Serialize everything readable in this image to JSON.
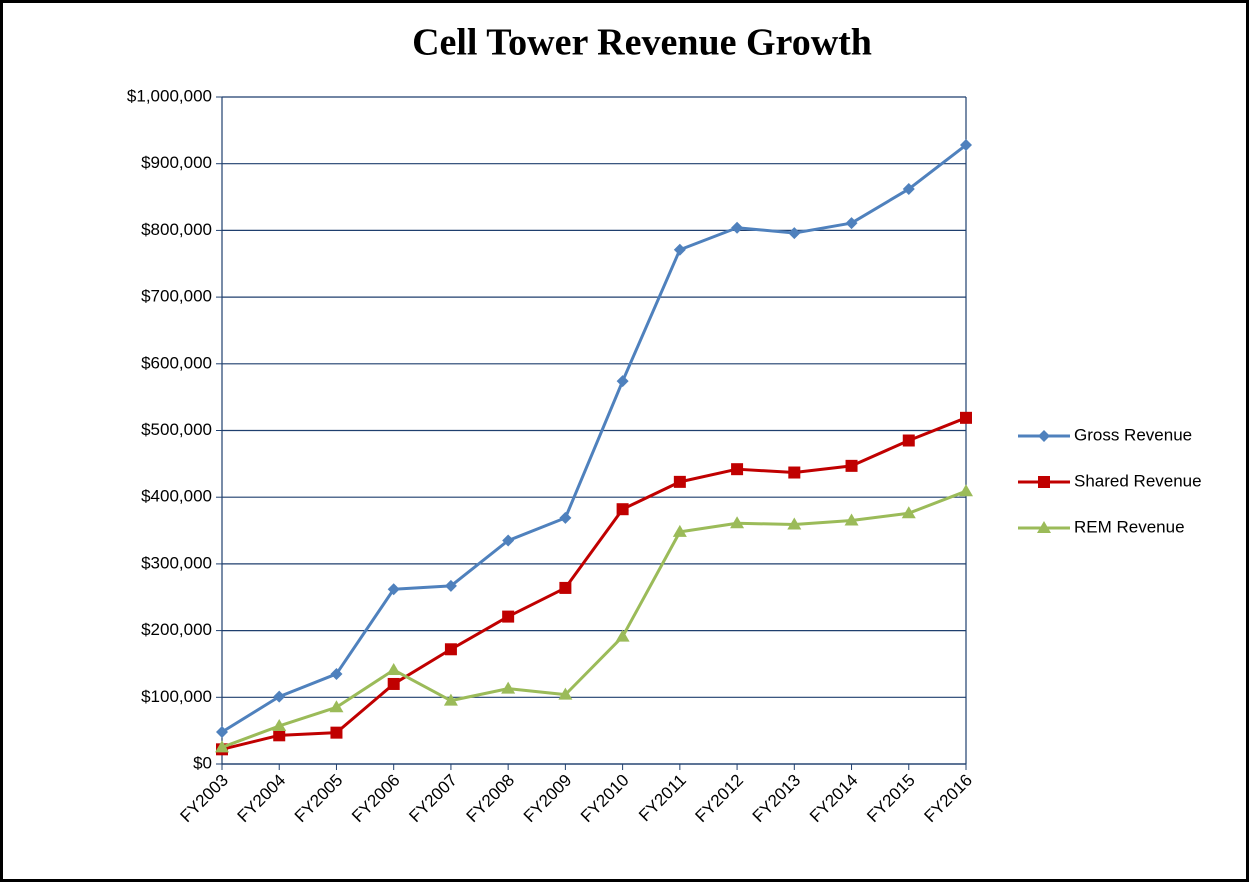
{
  "chart_data": {
    "type": "line",
    "title": "Cell Tower Revenue Growth",
    "categories": [
      "FY2003",
      "FY2004",
      "FY2005",
      "FY2006",
      "FY2007",
      "FY2008",
      "FY2009",
      "FY2010",
      "FY2011",
      "FY2012",
      "FY2013",
      "FY2014",
      "FY2015",
      "FY2016"
    ],
    "series": [
      {
        "name": "Gross Revenue",
        "color": "#4f81bd",
        "marker": "diamond",
        "values": [
          48000,
          101000,
          135000,
          262000,
          267000,
          335000,
          369000,
          574000,
          771000,
          804000,
          796000,
          811000,
          862000,
          928000
        ]
      },
      {
        "name": "Shared Revenue",
        "color": "#c00000",
        "marker": "square",
        "values": [
          22000,
          43000,
          47000,
          120000,
          172000,
          221000,
          264000,
          382000,
          423000,
          442000,
          437000,
          447000,
          485000,
          519000
        ]
      },
      {
        "name": "REM Revenue",
        "color": "#9bbb59",
        "marker": "triangle",
        "values": [
          25000,
          57000,
          85000,
          141000,
          95000,
          113000,
          104000,
          191000,
          348000,
          361000,
          359000,
          365000,
          376000,
          409000
        ]
      }
    ],
    "ylim": [
      0,
      1000000
    ],
    "yticks": [
      {
        "value": 0,
        "label": "$0"
      },
      {
        "value": 100000,
        "label": "$100,000"
      },
      {
        "value": 200000,
        "label": "$200,000"
      },
      {
        "value": 300000,
        "label": "$300,000"
      },
      {
        "value": 400000,
        "label": "$400,000"
      },
      {
        "value": 500000,
        "label": "$500,000"
      },
      {
        "value": 600000,
        "label": "$600,000"
      },
      {
        "value": 700000,
        "label": "$700,000"
      },
      {
        "value": 800000,
        "label": "$800,000"
      },
      {
        "value": 900000,
        "label": "$900,000"
      },
      {
        "value": 1000000,
        "label": "$1,000,000"
      }
    ],
    "grid": true,
    "legend": "right"
  }
}
